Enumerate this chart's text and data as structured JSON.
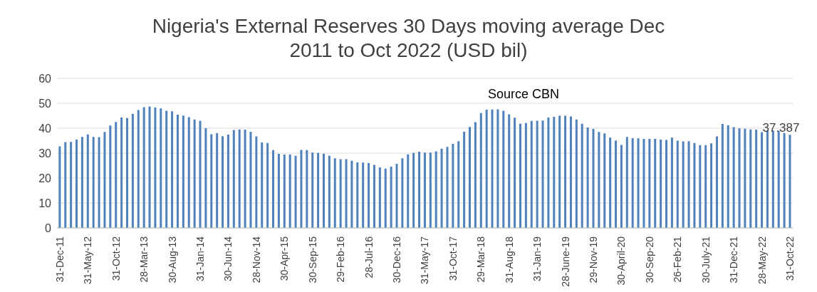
{
  "chart_data": {
    "type": "bar",
    "title": "Nigeria's External Reserves 30 Days moving average Dec 2011 to Oct 2022 (USD bil)",
    "annotations": [
      "Source CBN"
    ],
    "categories": [
      "31-Dec-11",
      null,
      null,
      null,
      null,
      "31-May-12",
      null,
      null,
      null,
      null,
      "31-Oct-12",
      null,
      null,
      null,
      null,
      "28-Mar-13",
      null,
      null,
      null,
      null,
      "30-Aug-13",
      null,
      null,
      null,
      null,
      "31-Jan-14",
      null,
      null,
      null,
      null,
      "30-Jun-14",
      null,
      null,
      null,
      null,
      "28-Nov-14",
      null,
      null,
      null,
      null,
      "30-Apr-15",
      null,
      null,
      null,
      null,
      "30-Sep-15",
      null,
      null,
      null,
      null,
      "29-Feb-16",
      null,
      null,
      null,
      null,
      "28-Jul-16",
      null,
      null,
      null,
      null,
      "30-Dec-16",
      null,
      null,
      null,
      null,
      "31-May-17",
      null,
      null,
      null,
      null,
      "31-Oct-17",
      null,
      null,
      null,
      null,
      "29-Mar-18",
      null,
      null,
      null,
      null,
      "31-Aug-18",
      null,
      null,
      null,
      null,
      "31-Jan-19",
      null,
      null,
      null,
      null,
      "28-June-19",
      null,
      null,
      null,
      null,
      "29-Nov-19",
      null,
      null,
      null,
      null,
      "30-April-20",
      null,
      null,
      null,
      null,
      "30-Sep-20",
      null,
      null,
      null,
      null,
      "26-Feb-21",
      null,
      null,
      null,
      null,
      "30-July-21",
      null,
      null,
      null,
      null,
      "31-Dec-21",
      null,
      null,
      null,
      null,
      "28-May-22",
      null,
      null,
      null,
      null,
      "31-Oct-22"
    ],
    "values": [
      32.7,
      34.4,
      34.5,
      35.4,
      36.5,
      37.5,
      36.5,
      36.4,
      38.5,
      41.1,
      42.5,
      44.3,
      44.1,
      45.8,
      47.3,
      48.4,
      48.7,
      48.3,
      47.9,
      47.0,
      46.8,
      45.4,
      45.1,
      44.4,
      43.5,
      42.9,
      40.0,
      37.6,
      38.0,
      36.8,
      37.4,
      39.3,
      39.5,
      39.4,
      38.6,
      36.7,
      34.3,
      34.1,
      31.2,
      29.7,
      29.4,
      29.4,
      28.9,
      31.3,
      31.2,
      30.2,
      30.1,
      29.8,
      28.9,
      27.9,
      27.6,
      27.6,
      26.9,
      26.3,
      26.2,
      26.0,
      25.3,
      24.3,
      23.8,
      24.6,
      25.7,
      27.9,
      29.5,
      30.1,
      30.6,
      30.2,
      30.2,
      30.7,
      31.8,
      32.5,
      33.7,
      34.8,
      38.6,
      40.5,
      42.4,
      46.1,
      47.4,
      47.5,
      47.6,
      47.0,
      45.6,
      44.2,
      41.8,
      42.1,
      42.9,
      43.0,
      43.1,
      44.3,
      44.6,
      45.0,
      45.0,
      44.7,
      43.5,
      41.8,
      40.3,
      39.7,
      38.5,
      37.9,
      36.2,
      35.1,
      33.3,
      36.5,
      36.0,
      35.9,
      35.7,
      35.7,
      35.7,
      35.4,
      35.3,
      36.2,
      35.0,
      34.7,
      34.8,
      34.1,
      33.2,
      33.2,
      33.9,
      36.7,
      41.7,
      41.2,
      40.4,
      39.9,
      39.8,
      39.5,
      39.4,
      38.4,
      39.0,
      39.1,
      38.9,
      38.1,
      37.387
    ],
    "value_labels": [
      null,
      null,
      null,
      null,
      null,
      null,
      null,
      null,
      null,
      null,
      null,
      null,
      null,
      null,
      null,
      null,
      null,
      null,
      null,
      null,
      null,
      null,
      null,
      null,
      null,
      null,
      null,
      null,
      null,
      null,
      null,
      null,
      null,
      null,
      null,
      null,
      null,
      null,
      null,
      null,
      null,
      null,
      null,
      null,
      null,
      null,
      null,
      null,
      null,
      null,
      null,
      null,
      null,
      null,
      null,
      null,
      null,
      null,
      null,
      null,
      null,
      null,
      null,
      null,
      null,
      null,
      null,
      null,
      null,
      null,
      null,
      null,
      null,
      null,
      null,
      null,
      null,
      null,
      null,
      null,
      null,
      null,
      null,
      null,
      null,
      null,
      null,
      null,
      null,
      null,
      null,
      null,
      null,
      null,
      null,
      null,
      null,
      null,
      null,
      null,
      null,
      null,
      null,
      null,
      null,
      null,
      null,
      null,
      null,
      null,
      null,
      null,
      null,
      null,
      null,
      null,
      null,
      null,
      null,
      null,
      null,
      null,
      null,
      null,
      null,
      null,
      null,
      null,
      null,
      null,
      "37.387"
    ],
    "color": "#4f81bd",
    "ylim": [
      0,
      60
    ],
    "yticks": [
      0,
      10,
      20,
      30,
      40,
      50,
      60
    ],
    "grid": "y",
    "legend": false
  }
}
